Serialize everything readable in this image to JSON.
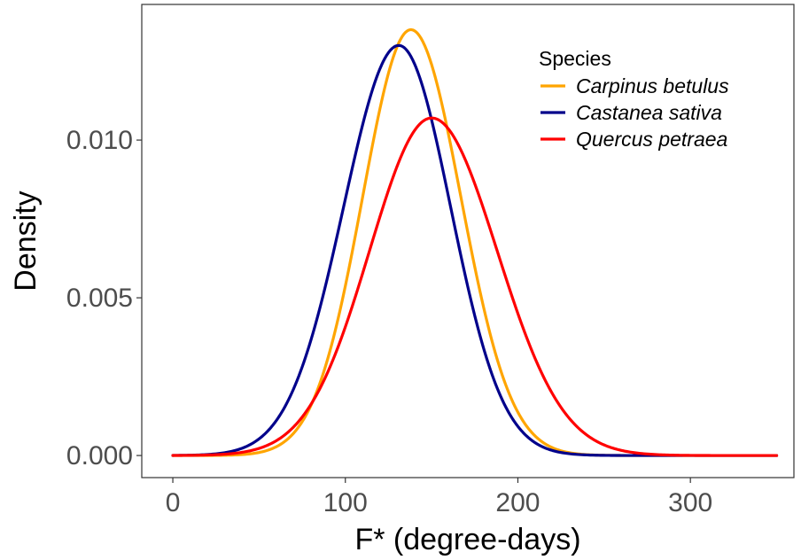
{
  "chart_data": {
    "type": "line",
    "title": "",
    "xlabel": "F* (degree-days)",
    "ylabel": "Density",
    "xlim": [
      -18,
      360
    ],
    "ylim": [
      -0.0007,
      0.0143
    ],
    "x_ticks": [
      0,
      100,
      200,
      300
    ],
    "x_tick_labels": [
      "0",
      "100",
      "200",
      "300"
    ],
    "y_ticks": [
      0.0,
      0.005,
      0.01
    ],
    "y_tick_labels": [
      "0.000",
      "0.005",
      "0.010"
    ],
    "grid": false,
    "legend": {
      "title": "Species",
      "placement": "top-right"
    },
    "x_range": [
      0,
      350
    ],
    "series": [
      {
        "name": "Carpinus betulus",
        "color": "#FFA500",
        "peak_x": 138,
        "peak_y": 0.0135,
        "sd_left": 28,
        "sd_right": 29
      },
      {
        "name": "Castanea sativa",
        "color": "#00008B",
        "peak_x": 131,
        "peak_y": 0.013,
        "sd_left": 32,
        "sd_right": 30
      },
      {
        "name": "Quercus petraea",
        "color": "#FF0000",
        "peak_x": 150,
        "peak_y": 0.0107,
        "sd_left": 36,
        "sd_right": 38
      }
    ]
  }
}
